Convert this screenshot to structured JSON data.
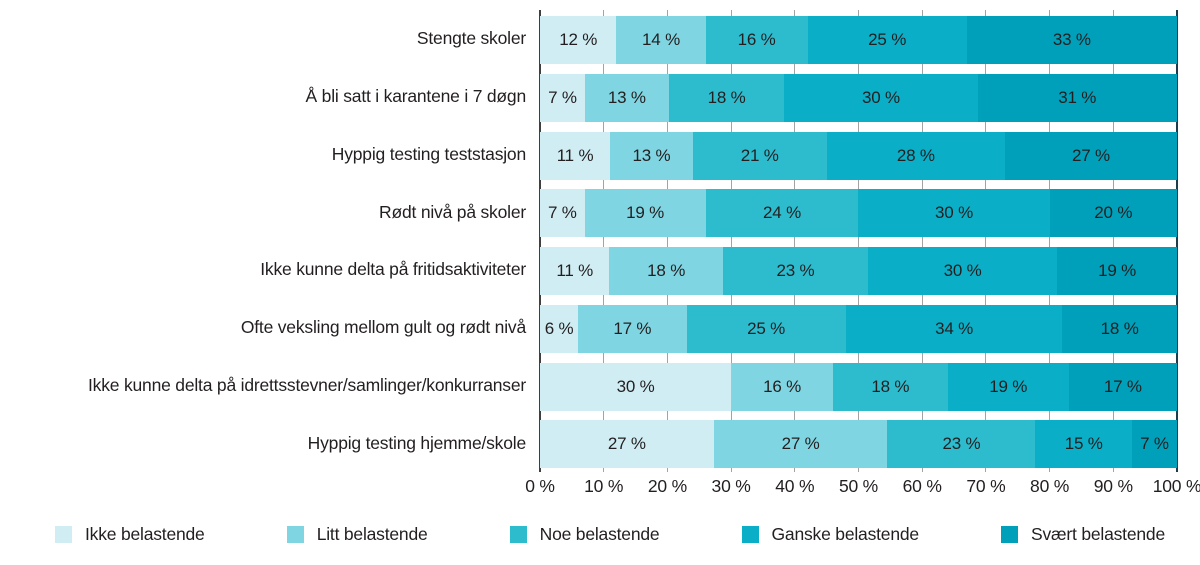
{
  "chart_data": {
    "type": "bar",
    "orientation": "horizontal",
    "stacked": true,
    "title": "",
    "categories": [
      "Stengte skoler",
      "Å bli satt i karantene i 7 døgn",
      "Hyppig testing teststasjon",
      "Rødt nivå på skoler",
      "Ikke kunne delta på fritidsaktiviteter",
      "Ofte veksling mellom gult og rødt nivå",
      "Ikke kunne delta på idrettsstevner/samlinger/konkurranser",
      "Hyppig testing hjemme/skole"
    ],
    "series": [
      {
        "name": "Ikke belastende",
        "color": "#d0edf3",
        "values": [
          12,
          7,
          11,
          7,
          11,
          6,
          30,
          27
        ]
      },
      {
        "name": "Litt belastende",
        "color": "#7fd5e1",
        "values": [
          14,
          13,
          13,
          19,
          18,
          17,
          16,
          27
        ]
      },
      {
        "name": "Noe belastende",
        "color": "#2dbcce",
        "values": [
          16,
          18,
          21,
          24,
          23,
          25,
          18,
          23
        ]
      },
      {
        "name": "Ganske belastende",
        "color": "#0aaec6",
        "values": [
          25,
          30,
          28,
          30,
          30,
          34,
          19,
          15
        ]
      },
      {
        "name": "Svært belastende",
        "color": "#00a0ba",
        "values": [
          33,
          31,
          27,
          20,
          19,
          18,
          17,
          7
        ]
      }
    ],
    "x_ticks": [
      "0 %",
      "10 %",
      "20 %",
      "30 %",
      "40 %",
      "50 %",
      "60 %",
      "70 %",
      "80 %",
      "90 %",
      "100 %"
    ],
    "xlim": [
      0,
      100
    ],
    "value_suffix": " %",
    "grid": true,
    "legend_position": "bottom",
    "colors": {
      "gridline": "#a3a3a3",
      "axis_left": "#3f3f3f",
      "axis_right": "#1e3d4a",
      "text": "#231f20"
    }
  }
}
